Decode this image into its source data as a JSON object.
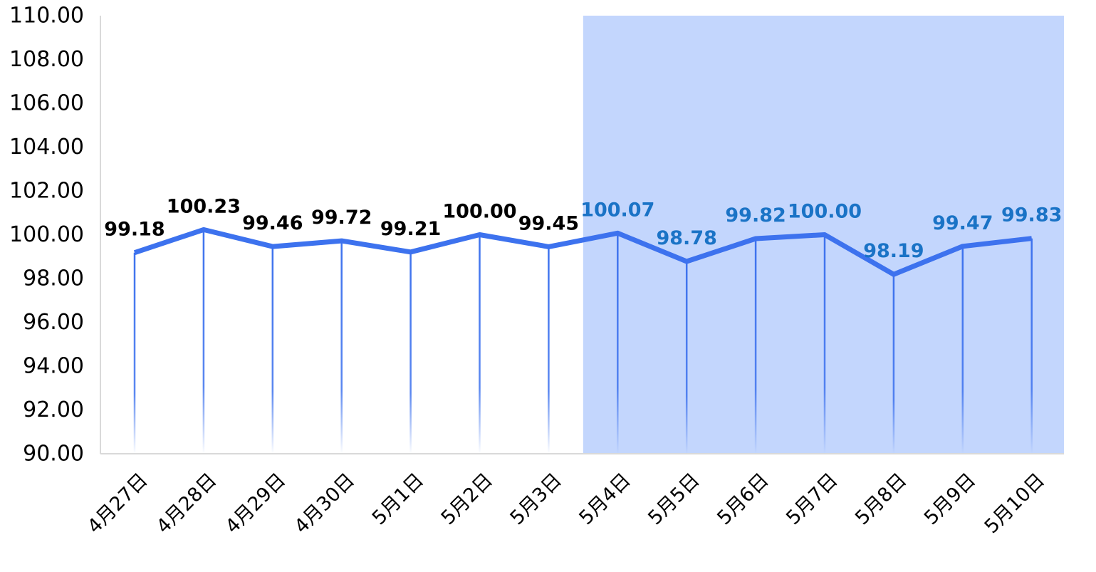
{
  "chart_data": {
    "type": "line",
    "categories": [
      "4月27日",
      "4月28日",
      "4月29日",
      "4月30日",
      "5月1日",
      "5月2日",
      "5月3日",
      "5月4日",
      "5月5日",
      "5月6日",
      "5月7日",
      "5月8日",
      "5月9日",
      "5月10日"
    ],
    "series": [
      {
        "values": [
          99.18,
          100.23,
          99.46,
          99.72,
          99.21,
          100.0,
          99.45,
          100.07,
          98.78,
          99.82,
          100.0,
          98.19,
          99.47,
          99.83
        ],
        "value_labels": [
          "99.18",
          "100.23",
          "99.46",
          "99.72",
          "99.21",
          "100.00",
          "99.45",
          "100.07",
          "98.78",
          "99.82",
          "100.00",
          "98.19",
          "99.47",
          "99.83"
        ]
      }
    ],
    "ylim": [
      90,
      110
    ],
    "y_ticks": [
      "90.00",
      "92.00",
      "94.00",
      "96.00",
      "98.00",
      "100.00",
      "102.00",
      "104.00",
      "106.00",
      "108.00",
      "110.00"
    ],
    "highlight_range": {
      "from_category": "5月4日",
      "to_category": "5月10日"
    },
    "grid": false,
    "legend": "none",
    "colors": {
      "line": "#3d72ee",
      "highlight": "#c3d6fd",
      "label_default": "#000000",
      "label_highlight": "#1a73c6",
      "axis": "#d9d9d9"
    }
  }
}
